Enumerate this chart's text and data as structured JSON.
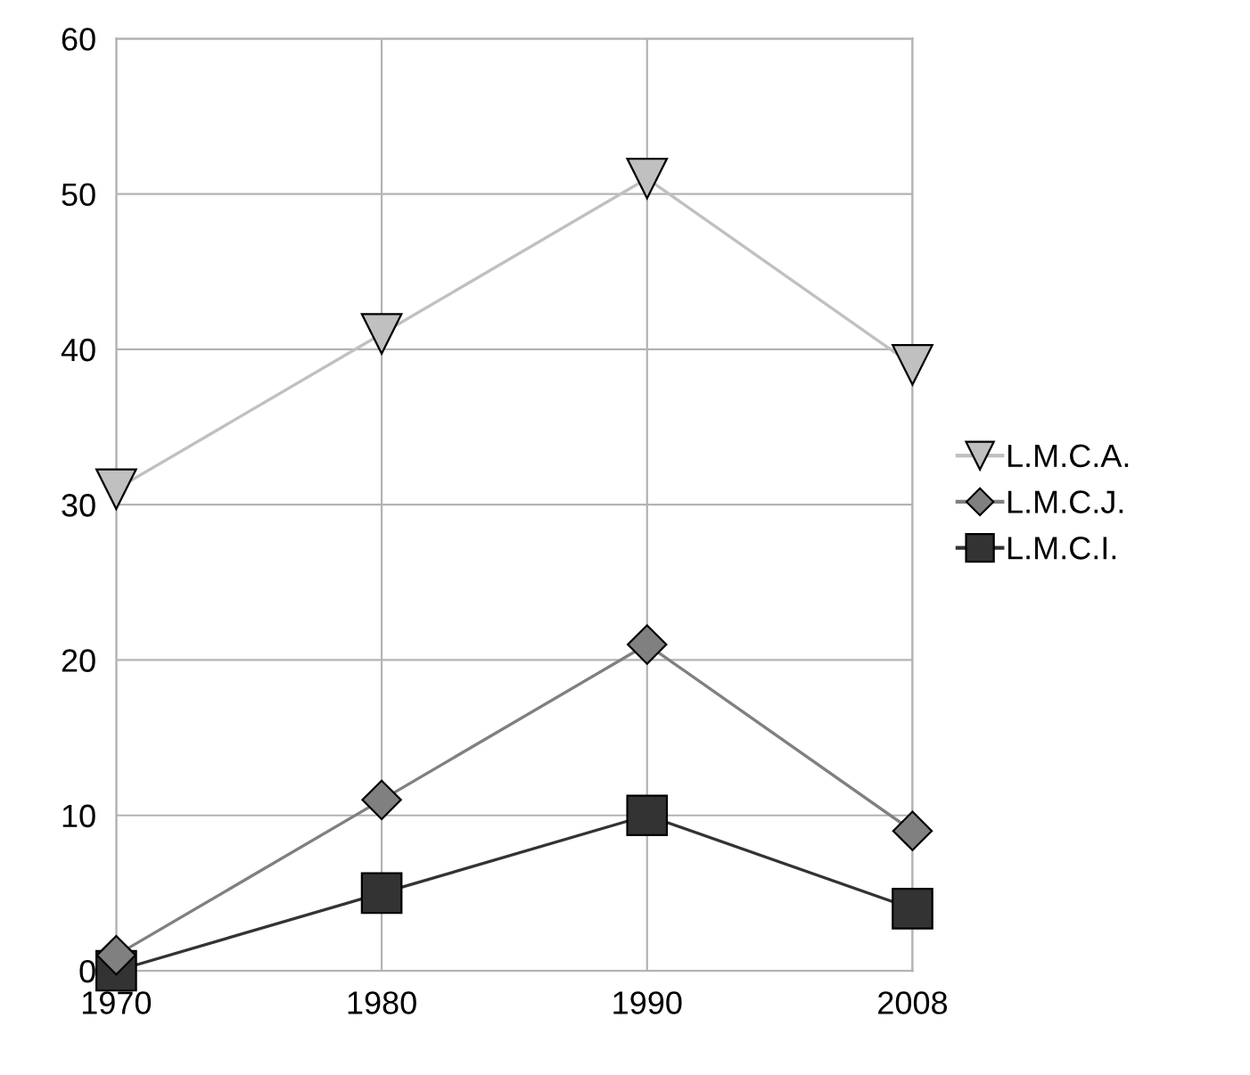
{
  "chart_data": {
    "type": "line",
    "categories": [
      "1970",
      "1980",
      "1990",
      "2008"
    ],
    "series": [
      {
        "name": "L.M.C.A.",
        "color": "#c0c0c0",
        "marker": "triangle",
        "values": [
          31,
          41,
          51,
          39
        ]
      },
      {
        "name": "L.M.C.J.",
        "color": "#808080",
        "marker": "diamond",
        "values": [
          1,
          11,
          21,
          9
        ]
      },
      {
        "name": "L.M.C.I.",
        "color": "#333333",
        "marker": "square",
        "values": [
          0,
          5,
          10,
          4
        ]
      }
    ],
    "ylim": [
      0,
      60
    ],
    "yticks": [
      0,
      10,
      20,
      30,
      40,
      50,
      60
    ],
    "grid": true,
    "legend": "right",
    "line_style": "solid"
  }
}
